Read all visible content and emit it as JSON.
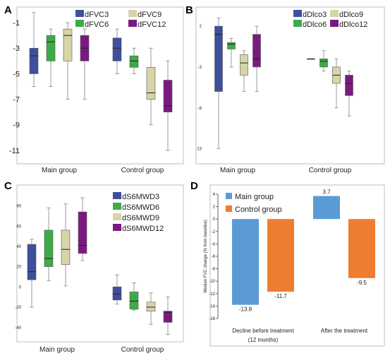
{
  "panels": {
    "A": {
      "letter": "A"
    },
    "B": {
      "letter": "B"
    },
    "C": {
      "letter": "C"
    },
    "D": {
      "letter": "D"
    }
  },
  "chart_data": [
    {
      "panel": "A",
      "type": "box",
      "groups": [
        "Main group",
        "Control group"
      ],
      "ylim": [
        -11.5,
        0
      ],
      "yticks": [
        -1,
        -3,
        -5,
        -7,
        -9,
        -11
      ],
      "grid": false,
      "legend_position": "top",
      "series": [
        {
          "name": "dFVC3",
          "color": "#3f4f9e",
          "boxes": [
            {
              "min": -6,
              "q1": -5,
              "median": -3.6,
              "q3": -3,
              "max": -0.2
            },
            {
              "min": -5,
              "q1": -4,
              "median": -3,
              "q3": -2.2,
              "max": -1.5
            }
          ]
        },
        {
          "name": "dFVC6",
          "color": "#3faa48",
          "boxes": [
            {
              "min": -6,
              "q1": -4,
              "median": -2.5,
              "q3": -2,
              "max": -1.5
            },
            {
              "min": -5,
              "q1": -4.5,
              "median": -4,
              "q3": -3.6,
              "max": -3
            }
          ]
        },
        {
          "name": "dFVC9",
          "color": "#d8d4a8",
          "boxes": [
            {
              "min": -7,
              "q1": -4,
              "median": -2,
              "q3": -1.5,
              "max": -1
            },
            {
              "min": -9,
              "q1": -7,
              "median": -6.5,
              "q3": -4.5,
              "max": -3
            }
          ]
        },
        {
          "name": "dFVC12",
          "color": "#7a1a80",
          "boxes": [
            {
              "min": -7,
              "q1": -4,
              "median": -3,
              "q3": -2,
              "max": -1.5
            },
            {
              "min": -11,
              "q1": -8,
              "median": -7.5,
              "q3": -5.5,
              "max": -4
            }
          ]
        }
      ]
    },
    {
      "panel": "B",
      "type": "box",
      "groups": [
        "Main group",
        "Control group"
      ],
      "ylim": [
        -14,
        4
      ],
      "yticks": [
        2,
        -3,
        -8,
        -13
      ],
      "grid": false,
      "legend_position": "top",
      "series": [
        {
          "name": "dDlco3",
          "color": "#3f4f9e",
          "boxes": [
            {
              "min": -13,
              "q1": -6,
              "median": 1,
              "q3": 2,
              "max": 3
            },
            {
              "min": -2,
              "q1": -2,
              "median": -2,
              "q3": -2,
              "max": -2
            }
          ]
        },
        {
          "name": "dDlco6",
          "color": "#3faa48",
          "boxes": [
            {
              "min": -3,
              "q1": -0.8,
              "median": -0.2,
              "q3": 0,
              "max": 0.5
            },
            {
              "min": -3.5,
              "q1": -3,
              "median": -2.3,
              "q3": -2,
              "max": -1
            }
          ]
        },
        {
          "name": "dDlco9",
          "color": "#d8d4a8",
          "boxes": [
            {
              "min": -6,
              "q1": -4,
              "median": -2.5,
              "q3": -1.5,
              "max": -1
            },
            {
              "min": -8,
              "q1": -5,
              "median": -4,
              "q3": -3,
              "max": -2
            }
          ]
        },
        {
          "name": "dDlco12",
          "color": "#7a1a80",
          "boxes": [
            {
              "min": -6,
              "q1": -3,
              "median": -2,
              "q3": 1,
              "max": 2
            },
            {
              "min": -9,
              "q1": -6.5,
              "median": -5,
              "q3": -4,
              "max": -3.5
            }
          ]
        }
      ]
    },
    {
      "panel": "C",
      "type": "box",
      "groups": [
        "Main group",
        "Control group"
      ],
      "ylim": [
        -50,
        95
      ],
      "yticks": [
        80,
        60,
        40,
        20,
        0,
        -20,
        -40
      ],
      "grid": false,
      "legend_position": "top-right",
      "series": [
        {
          "name": "dS6MWD3",
          "color": "#3f4f9e",
          "boxes": [
            {
              "min": -20,
              "q1": 7,
              "median": 15,
              "q3": 42,
              "max": 47
            },
            {
              "min": -17,
              "q1": -13,
              "median": -7,
              "q3": 0,
              "max": 12
            }
          ]
        },
        {
          "name": "dS6MWD6",
          "color": "#3faa48",
          "boxes": [
            {
              "min": 6,
              "q1": 20,
              "median": 28,
              "q3": 56,
              "max": 78
            },
            {
              "min": -23,
              "q1": -22,
              "median": -14,
              "q3": -5,
              "max": 4
            }
          ]
        },
        {
          "name": "dS6MWD9",
          "color": "#d8d4a8",
          "boxes": [
            {
              "min": 1,
              "q1": 22,
              "median": 37,
              "q3": 56,
              "max": 82
            },
            {
              "min": -37,
              "q1": -24,
              "median": -20,
              "q3": -15,
              "max": -6
            }
          ]
        },
        {
          "name": "dS6MWD12",
          "color": "#7a1a80",
          "boxes": [
            {
              "min": 26,
              "q1": 33,
              "median": 41,
              "q3": 74,
              "max": 88
            },
            {
              "min": -47,
              "q1": -35,
              "median": -25,
              "q3": -24,
              "max": -10
            }
          ]
        }
      ]
    },
    {
      "panel": "D",
      "type": "bar",
      "categories": [
        "Decline before treatment",
        "After the treatment"
      ],
      "category_sublabels": [
        "(12 months)",
        ""
      ],
      "ylabel": "Median FVC change (% from baseline)",
      "ylim": [
        -16,
        4
      ],
      "yticks": [
        4,
        2,
        0,
        -2,
        -4,
        -6,
        -8,
        -10,
        -12,
        -14,
        -16
      ],
      "grid": false,
      "legend_position": "top-left",
      "series": [
        {
          "name": "Main group",
          "color": "#5b9bd5",
          "values": [
            -13.8,
            3.7
          ],
          "labels": [
            "-13.8",
            "3.7"
          ]
        },
        {
          "name": "Control group",
          "color": "#ed7d31",
          "values": [
            -11.7,
            -9.5
          ],
          "labels": [
            "-11.7",
            "-9.5"
          ]
        }
      ]
    }
  ]
}
